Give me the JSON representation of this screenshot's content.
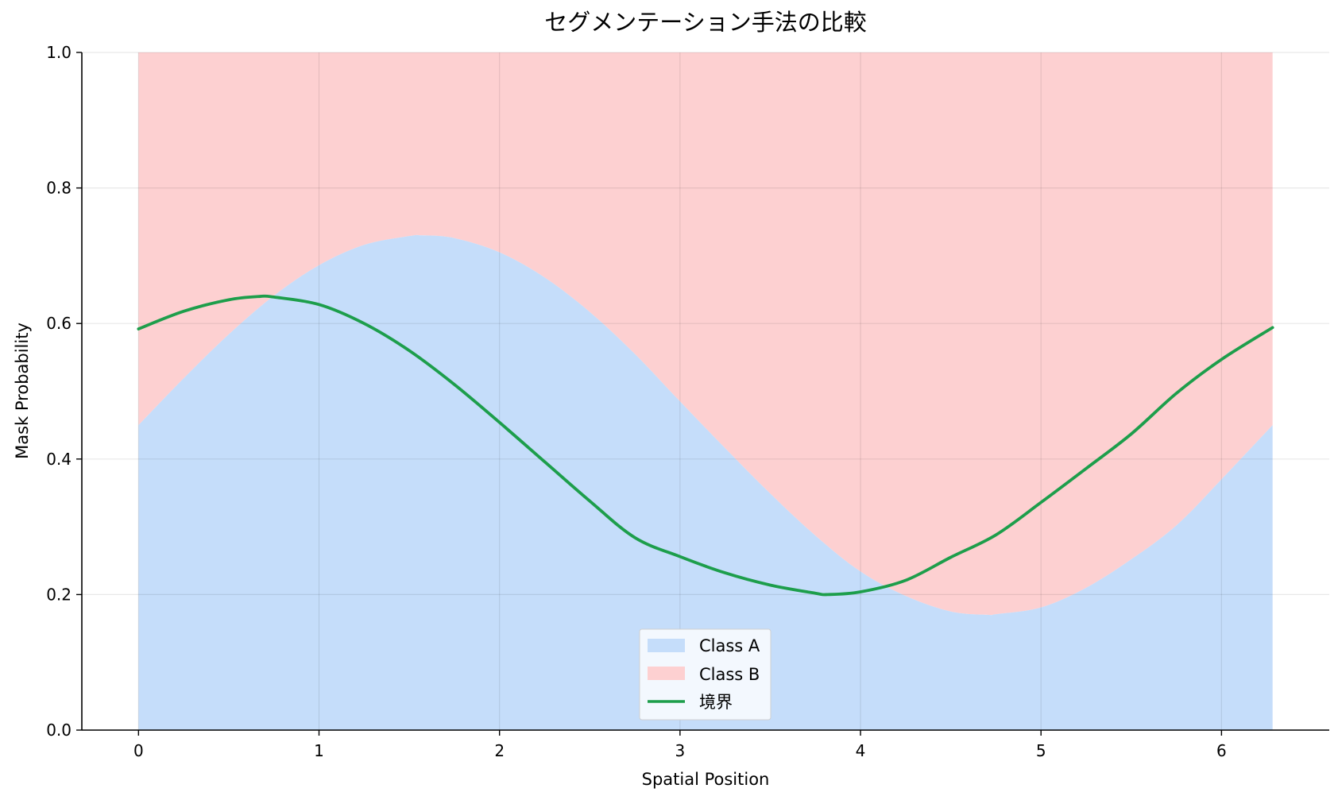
{
  "chart_data": {
    "type": "area",
    "title": "セグメンテーション手法の比較",
    "xlabel": "Spatial Position",
    "ylabel": "Mask Probability",
    "xlim": [
      -0.314,
      6.597
    ],
    "ylim": [
      0,
      1
    ],
    "xticks": [
      0,
      1,
      2,
      3,
      4,
      5,
      6
    ],
    "yticks": [
      0.0,
      0.2,
      0.4,
      0.6,
      0.8,
      1.0
    ],
    "xtick_labels": [
      "0",
      "1",
      "2",
      "3",
      "4",
      "5",
      "6"
    ],
    "ytick_labels": [
      "0.0",
      "0.2",
      "0.4",
      "0.6",
      "0.8",
      "1.0"
    ],
    "grid": true,
    "legend_position": "bottom-center",
    "series": [
      {
        "name": "Class A",
        "kind": "stacked-area",
        "color": "#c5ddfa",
        "x": [
          0,
          0.25,
          0.5,
          0.75,
          1.0,
          1.25,
          1.5,
          1.571,
          1.75,
          2.0,
          2.25,
          2.5,
          2.75,
          3.0,
          3.25,
          3.5,
          3.75,
          4.0,
          4.25,
          4.5,
          4.712,
          4.75,
          5.0,
          5.25,
          5.5,
          5.75,
          6.0,
          6.283
        ],
        "values": [
          0.45,
          0.519,
          0.584,
          0.641,
          0.686,
          0.716,
          0.729,
          0.73,
          0.726,
          0.705,
          0.668,
          0.617,
          0.555,
          0.485,
          0.416,
          0.349,
          0.287,
          0.234,
          0.198,
          0.175,
          0.17,
          0.171,
          0.181,
          0.21,
          0.252,
          0.302,
          0.37,
          0.45
        ]
      },
      {
        "name": "Class B",
        "kind": "stacked-area",
        "color": "#fdd0d1",
        "x": [
          0,
          6.283
        ],
        "values_note_free": true,
        "values": [
          1.0,
          1.0
        ]
      },
      {
        "name": "境界",
        "kind": "line",
        "color": "#1d9e4b",
        "x": [
          0,
          0.25,
          0.5,
          0.675,
          0.75,
          1.0,
          1.25,
          1.5,
          1.75,
          2.0,
          2.25,
          2.5,
          2.75,
          3.0,
          3.25,
          3.5,
          3.75,
          3.817,
          4.0,
          4.25,
          4.5,
          4.75,
          5.0,
          5.25,
          5.5,
          5.75,
          6.0,
          6.283
        ],
        "values": [
          0.592,
          0.618,
          0.635,
          0.64,
          0.639,
          0.628,
          0.6,
          0.56,
          0.51,
          0.454,
          0.396,
          0.338,
          0.284,
          0.256,
          0.232,
          0.214,
          0.202,
          0.2,
          0.204,
          0.221,
          0.255,
          0.288,
          0.336,
          0.386,
          0.437,
          0.497,
          0.547,
          0.594
        ]
      }
    ]
  }
}
